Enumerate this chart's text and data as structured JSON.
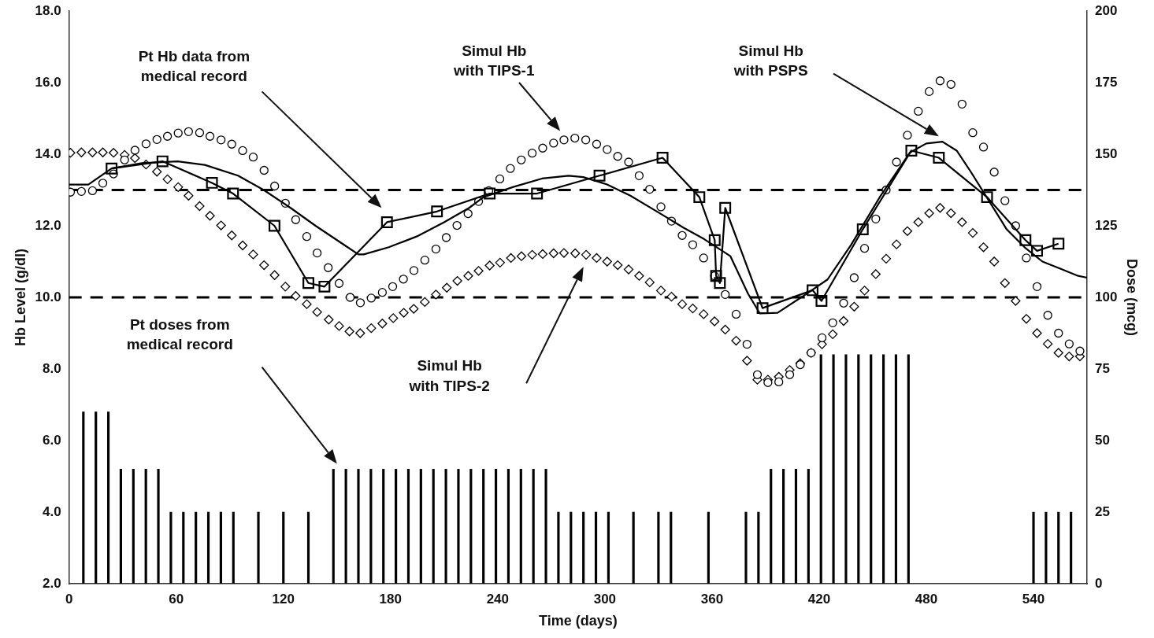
{
  "chart_data": {
    "type": "line",
    "xlabel": "Time (days)",
    "ylabel": "Hb Level (g/dl)",
    "y2label": "Dose (mcg)",
    "xlim": [
      0,
      570
    ],
    "xticks": [
      0,
      60,
      120,
      180,
      240,
      300,
      360,
      420,
      480,
      540
    ],
    "ylim": [
      2,
      18
    ],
    "yticks": [
      {
        "value": 2,
        "label": "2.0"
      },
      {
        "value": 4,
        "label": "4.0"
      },
      {
        "value": 6,
        "label": "6.0"
      },
      {
        "value": 8,
        "label": "8.0"
      },
      {
        "value": 10,
        "label": "10.0"
      },
      {
        "value": 12,
        "label": "12.0"
      },
      {
        "value": 14,
        "label": "14.0"
      },
      {
        "value": 16,
        "label": "16.0"
      },
      {
        "value": 18,
        "label": "18.0"
      }
    ],
    "y2lim": [
      0,
      200
    ],
    "y2ticks": [
      0,
      25,
      50,
      75,
      100,
      125,
      150,
      175,
      200
    ],
    "ref_lines": [
      {
        "axis": "y",
        "value": 13,
        "color": "#000000",
        "line_style": "dashed"
      },
      {
        "axis": "y",
        "value": 10,
        "color": "#000000",
        "line_style": "dashed"
      }
    ],
    "annotations": [
      "Pt Hb data from medical record",
      "Simul Hb with TIPS-1",
      "Simul Hb with PSPS",
      "Pt doses from medical record",
      "Simul Hb with TIPS-2"
    ],
    "series": [
      {
        "type": "bar",
        "axis": "y2",
        "color": "#000000",
        "x": [
          8,
          15,
          22,
          29,
          36,
          43,
          50,
          57,
          64,
          71,
          78,
          85,
          92,
          106,
          120,
          134,
          148,
          155,
          162,
          169,
          176,
          183,
          190,
          197,
          204,
          211,
          218,
          225,
          232,
          239,
          246,
          253,
          260,
          267,
          274,
          281,
          288,
          295,
          302,
          316,
          330,
          337,
          358,
          379,
          386,
          393,
          400,
          407,
          414,
          421,
          428,
          435,
          442,
          449,
          456,
          463,
          470,
          540,
          547,
          554,
          561
        ],
        "values": [
          60,
          60,
          60,
          40,
          40,
          40,
          40,
          25,
          25,
          25,
          25,
          25,
          25,
          25,
          25,
          25,
          40,
          40,
          40,
          40,
          40,
          40,
          40,
          40,
          40,
          40,
          40,
          40,
          40,
          40,
          40,
          40,
          40,
          40,
          25,
          25,
          25,
          25,
          25,
          25,
          25,
          25,
          25,
          25,
          25,
          40,
          40,
          40,
          40,
          80,
          80,
          80,
          80,
          80,
          80,
          80,
          80,
          25,
          25,
          25,
          25
        ]
      },
      {
        "type": "scatter",
        "marker": "circle",
        "color": "#000000",
        "x": [
          0.8,
          6.9,
          13.1,
          18.9,
          24.9,
          31.1,
          36.9,
          43.1,
          49.2,
          55.1,
          61.1,
          66.9,
          73.1,
          78.9,
          85.1,
          91.1,
          97.2,
          103.1,
          109.2,
          115.1,
          121.1,
          126.9,
          133.1,
          138.9,
          145.1,
          151.2,
          157.4,
          163.1,
          169.2,
          175.4,
          181.2,
          187.2,
          193.1,
          199.2,
          205.4,
          211.2,
          217.2,
          223.4,
          229.3,
          235,
          241.2,
          247.1,
          253.2,
          259.3,
          265.2,
          271.3,
          277.1,
          283.2,
          289.3,
          295.4,
          301.3,
          307.2,
          313.3,
          319.2,
          325.1,
          331.4,
          337.3,
          343.3,
          349.2,
          355.3,
          361.4,
          367.4,
          373.5,
          379.6,
          385.4,
          391.3,
          397.4,
          403.5,
          409.4,
          415.5,
          421.6,
          427.6,
          433.7,
          439.6,
          445.4,
          451.7,
          457.5,
          463.3,
          469.4,
          475.5,
          481.6,
          487.7,
          493.8,
          500,
          506,
          512,
          518,
          524,
          530,
          536,
          542,
          548,
          554,
          560,
          566
        ],
        "values": [
          12.94,
          12.96,
          12.98,
          13.19,
          13.45,
          13.84,
          14.11,
          14.29,
          14.41,
          14.5,
          14.59,
          14.63,
          14.6,
          14.5,
          14.4,
          14.28,
          14.1,
          13.92,
          13.55,
          13.11,
          12.63,
          12.17,
          11.7,
          11.24,
          10.83,
          10.39,
          10,
          9.85,
          9.98,
          10.14,
          10.3,
          10.51,
          10.75,
          11.04,
          11.35,
          11.67,
          12.01,
          12.34,
          12.68,
          12.98,
          13.31,
          13.6,
          13.84,
          14.03,
          14.17,
          14.31,
          14.4,
          14.45,
          14.4,
          14.28,
          14.13,
          13.94,
          13.78,
          13.4,
          13.02,
          12.53,
          12.13,
          11.73,
          11.47,
          11.1,
          10.6,
          10.08,
          9.53,
          8.69,
          7.84,
          7.62,
          7.64,
          7.84,
          8.12,
          8.45,
          8.87,
          9.29,
          9.84,
          10.55,
          11.37,
          12.19,
          13,
          13.78,
          14.53,
          15.2,
          15.75,
          16.05,
          15.95,
          15.4,
          14.6,
          14.2,
          13.5,
          12.7,
          12,
          11.1,
          10.3,
          9.5,
          9,
          8.7,
          8.5
        ]
      },
      {
        "type": "scatter",
        "marker": "diamond",
        "color": "#000000",
        "x": [
          0.8,
          6.9,
          13.1,
          18.9,
          24.9,
          31.1,
          36.9,
          43.1,
          49.2,
          55.1,
          61.1,
          66.9,
          73.1,
          78.9,
          85.1,
          91.1,
          97.2,
          103.1,
          109.2,
          115.1,
          121.1,
          126.9,
          133.1,
          138.9,
          145.4,
          151.2,
          157,
          163,
          169.2,
          175.4,
          181.5,
          187.4,
          193,
          199.2,
          205.4,
          211.5,
          217.4,
          223.5,
          229.3,
          235.5,
          241.3,
          247.4,
          253.3,
          259.3,
          265.2,
          271.3,
          277.1,
          283.4,
          289.5,
          295.4,
          301.3,
          307.2,
          313.3,
          319.2,
          325.1,
          331.4,
          337.3,
          343.3,
          349.2,
          355.3,
          361.4,
          367.4,
          373.5,
          379.6,
          385.4,
          391.3,
          397.4,
          403.5,
          409.4,
          415.5,
          421.6,
          427.6,
          433.7,
          439.6,
          445.4,
          451.7,
          457.5,
          463.3,
          469.4,
          475.5,
          481.6,
          487.7,
          493.8,
          500,
          506,
          512,
          518,
          524,
          530,
          536,
          542,
          548,
          554,
          560,
          566
        ],
        "values": [
          14.04,
          14.05,
          14.05,
          14.05,
          14.04,
          13.98,
          13.89,
          13.71,
          13.51,
          13.3,
          13.08,
          12.84,
          12.55,
          12.28,
          12.01,
          11.73,
          11.45,
          11.2,
          10.9,
          10.62,
          10.3,
          10.04,
          9.81,
          9.59,
          9.38,
          9.2,
          9.05,
          9,
          9.14,
          9.27,
          9.42,
          9.57,
          9.68,
          9.87,
          10.08,
          10.27,
          10.46,
          10.6,
          10.74,
          10.89,
          10.97,
          11.1,
          11.15,
          11.19,
          11.21,
          11.23,
          11.24,
          11.23,
          11.19,
          11.1,
          11,
          10.9,
          10.78,
          10.6,
          10.42,
          10.19,
          10.02,
          9.81,
          9.69,
          9.53,
          9.33,
          9.1,
          8.79,
          8.23,
          7.7,
          7.7,
          7.78,
          7.97,
          8.16,
          8.45,
          8.69,
          8.97,
          9.34,
          9.74,
          10.19,
          10.65,
          11.08,
          11.48,
          11.85,
          12.1,
          12.35,
          12.5,
          12.35,
          12.1,
          11.8,
          11.4,
          11,
          10.4,
          9.9,
          9.4,
          9,
          8.7,
          8.45,
          8.35,
          8.35
        ]
      },
      {
        "marker": "none",
        "color": "#000000",
        "x": [
          0,
          10.8,
          23.8,
          40.8,
          60.8,
          76,
          94.6,
          109,
          124,
          138,
          153,
          162,
          165,
          179,
          194.6,
          210,
          224,
          232,
          248.4,
          264.8,
          279.7,
          287.9,
          301,
          314.3,
          330.8,
          343.9,
          355.5,
          370.3,
          380.2,
          386.8,
          396.7,
          413,
          424.7,
          437.9,
          454.4,
          470.9,
          480,
          489,
          497,
          505,
          515,
          525,
          535,
          545,
          555,
          565,
          570
        ],
        "values": [
          13.15,
          13.15,
          13.6,
          13.75,
          13.8,
          13.7,
          13.4,
          13,
          12.5,
          12,
          11.5,
          11.2,
          11.2,
          11.4,
          11.7,
          12.1,
          12.5,
          12.8,
          13.08,
          13.32,
          13.4,
          13.36,
          13.16,
          12.84,
          12.35,
          11.95,
          11.63,
          11.15,
          10.1,
          9.55,
          9.57,
          10.1,
          10.5,
          11.47,
          12.84,
          14.05,
          14.3,
          14.35,
          14.1,
          13.5,
          12.7,
          11.9,
          11.4,
          11,
          10.8,
          10.6,
          10.55
        ]
      },
      {
        "marker": "square",
        "color": "#000000",
        "x": [
          23.8,
          52.3,
          80,
          91.8,
          115,
          134,
          143,
          178,
          206,
          235.5,
          262,
          297,
          332.3,
          352.9,
          361.5,
          362.3,
          364.4,
          367.4,
          388.3,
          416.3,
          421.3,
          444.4,
          471.6,
          487,
          514,
          535.5,
          542,
          554
        ],
        "values": [
          13.6,
          13.8,
          13.2,
          12.9,
          12,
          10.4,
          10.3,
          12.1,
          12.4,
          12.9,
          12.9,
          13.4,
          13.9,
          12.8,
          11.6,
          10.6,
          10.4,
          12.5,
          9.7,
          10.2,
          9.9,
          11.9,
          14.1,
          13.9,
          12.8,
          11.6,
          11.3,
          11.5
        ]
      }
    ]
  }
}
